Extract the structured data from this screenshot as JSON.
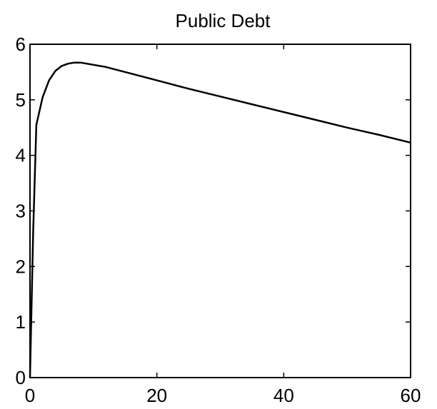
{
  "chart_data": {
    "type": "line",
    "title": "Public Debt",
    "xlabel": "",
    "ylabel": "",
    "xlim": [
      0,
      60
    ],
    "ylim": [
      0,
      6
    ],
    "x_ticks": [
      0,
      20,
      40,
      60
    ],
    "x_tick_labels": [
      "0",
      "20",
      "40",
      "60"
    ],
    "y_ticks": [
      0,
      1,
      2,
      3,
      4,
      5,
      6
    ],
    "y_tick_labels": [
      "0",
      "1",
      "2",
      "3",
      "4",
      "5",
      "6"
    ],
    "grid": false,
    "series": [
      {
        "x": [
          0,
          0.5,
          1,
          2,
          3,
          4,
          5,
          6,
          7,
          8,
          10,
          12,
          15,
          20,
          25,
          30,
          35,
          40,
          45,
          50,
          55,
          60
        ],
        "y": [
          0,
          2.6,
          4.55,
          5.05,
          5.35,
          5.52,
          5.61,
          5.65,
          5.67,
          5.67,
          5.63,
          5.59,
          5.5,
          5.35,
          5.2,
          5.06,
          4.92,
          4.78,
          4.64,
          4.5,
          4.37,
          4.23
        ]
      }
    ]
  }
}
